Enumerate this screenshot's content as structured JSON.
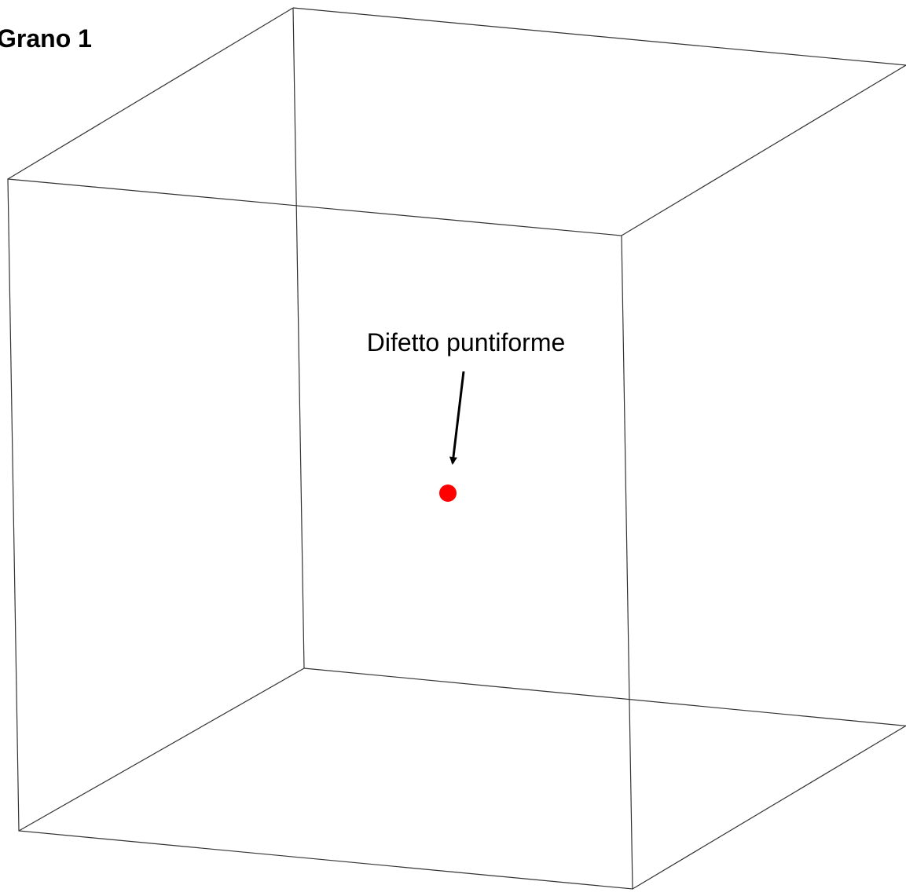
{
  "title": "Grano 1",
  "annotation": {
    "label": "Difetto puntiforme"
  }
}
